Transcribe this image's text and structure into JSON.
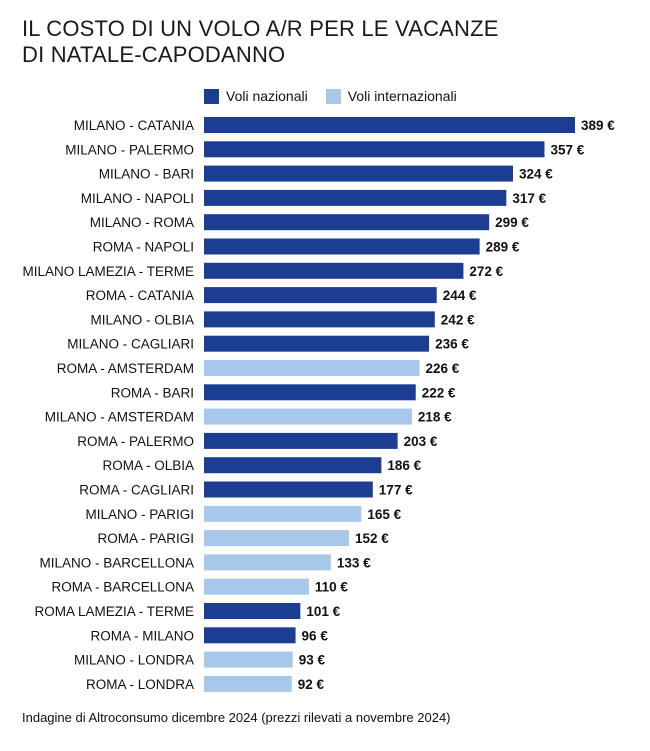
{
  "title": "IL COSTO DI UN VOLO A/R PER LE VACANZE\nDI NATALE-CAPODANNO",
  "note": "Indagine di Altroconsumo dicembre 2024 (prezzi rilevati a novembre 2024)",
  "colors": {
    "nazionali": "#1b3e93",
    "internazionali": "#a7c8eb"
  },
  "chart_data": {
    "type": "bar",
    "orientation": "horizontal",
    "unit": "€",
    "legend": [
      {
        "key": "nazionali",
        "label": "Voli nazionali"
      },
      {
        "key": "internazionali",
        "label": "Voli internazionali"
      }
    ],
    "categories": [
      "MILANO - CATANIA",
      "MILANO - PALERMO",
      "MILANO - BARI",
      "MILANO - NAPOLI",
      "MILANO - ROMA",
      "ROMA - NAPOLI",
      "MILANO LAMEZIA - TERME",
      "ROMA - CATANIA",
      "MILANO - OLBIA",
      "MILANO - CAGLIARI",
      "ROMA - AMSTERDAM",
      "ROMA - BARI",
      "MILANO - AMSTERDAM",
      "ROMA - PALERMO",
      "ROMA - OLBIA",
      "ROMA - CAGLIARI",
      "MILANO - PARIGI",
      "ROMA - PARIGI",
      "MILANO - BARCELLONA",
      "ROMA - BARCELLONA",
      "ROMA LAMEZIA - TERME",
      "ROMA - MILANO",
      "MILANO - LONDRA",
      "ROMA - LONDRA"
    ],
    "values": [
      389,
      357,
      324,
      317,
      299,
      289,
      272,
      244,
      242,
      236,
      226,
      222,
      218,
      203,
      186,
      177,
      165,
      152,
      133,
      110,
      101,
      96,
      93,
      92
    ],
    "type_per_bar": [
      "nazionali",
      "nazionali",
      "nazionali",
      "nazionali",
      "nazionali",
      "nazionali",
      "nazionali",
      "nazionali",
      "nazionali",
      "nazionali",
      "internazionali",
      "nazionali",
      "internazionali",
      "nazionali",
      "nazionali",
      "nazionali",
      "internazionali",
      "internazionali",
      "internazionali",
      "internazionali",
      "nazionali",
      "nazionali",
      "internazionali",
      "internazionali"
    ],
    "value_labels": [
      "389 €",
      "357 €",
      "324 €",
      "317 €",
      "299 €",
      "289 €",
      "272 €",
      "244 €",
      "242 €",
      "236 €",
      "226 €",
      "222 €",
      "218 €",
      "203 €",
      "186 €",
      "177 €",
      "165 €",
      "152 €",
      "133 €",
      "110 €",
      "101 €",
      "96 €",
      "93 €",
      "92 €"
    ]
  }
}
